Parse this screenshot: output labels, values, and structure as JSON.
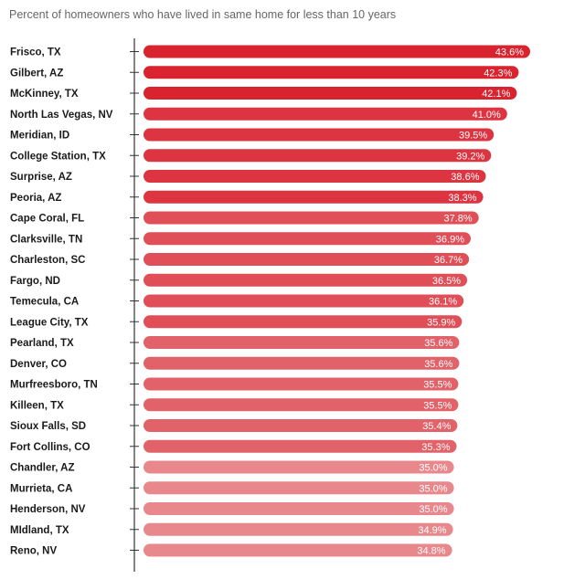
{
  "chart_data": {
    "type": "bar",
    "orientation": "horizontal",
    "title": "Percent of homeowners who have lived in same home for less than 10 years",
    "xlabel": "",
    "ylabel": "",
    "xlim": [
      0,
      43.6
    ],
    "categories": [
      "Frisco, TX",
      "Gilbert, AZ",
      "McKinney, TX",
      "North Las Vegas, NV",
      "Meridian, ID",
      "College Station, TX",
      "Surprise, AZ",
      "Peoria, AZ",
      "Cape Coral, FL",
      "Clarksville, TN",
      "Charleston, SC",
      "Fargo, ND",
      "Temecula, CA",
      "League City, TX",
      "Pearland, TX",
      "Denver, CO",
      "Murfreesboro, TN",
      "Killeen, TX",
      "Sioux Falls, SD",
      "Fort Collins, CO",
      "Chandler, AZ",
      "Murrieta, CA",
      "Henderson, NV",
      "MIdland, TX",
      "Reno, NV"
    ],
    "values": [
      43.6,
      42.3,
      42.1,
      41.0,
      39.5,
      39.2,
      38.6,
      38.3,
      37.8,
      36.9,
      36.7,
      36.5,
      36.1,
      35.9,
      35.6,
      35.6,
      35.5,
      35.5,
      35.4,
      35.3,
      35.0,
      35.0,
      35.0,
      34.9,
      34.8
    ],
    "value_labels": [
      "43.6%",
      "42.3%",
      "42.1%",
      "41.0%",
      "39.5%",
      "39.2%",
      "38.6%",
      "38.3%",
      "37.8%",
      "36.9%",
      "36.7%",
      "36.5%",
      "36.1%",
      "35.9%",
      "35.6%",
      "35.6%",
      "35.5%",
      "35.5%",
      "35.4%",
      "35.3%",
      "35.0%",
      "35.0%",
      "35.0%",
      "34.9%",
      "34.8%"
    ],
    "bar_colors": [
      "#d9232e",
      "#d9232e",
      "#d9232e",
      "#dc3440",
      "#dc3440",
      "#dc3440",
      "#dc3440",
      "#dc3440",
      "#e04f58",
      "#e04f58",
      "#e04f58",
      "#e04f58",
      "#e04f58",
      "#e04f58",
      "#e2626a",
      "#e2626a",
      "#e2626a",
      "#e2626a",
      "#e2626a",
      "#e2626a",
      "#e8888c",
      "#e8888c",
      "#e8888c",
      "#e8888c",
      "#e8888c"
    ],
    "grid": false,
    "legend": "none"
  }
}
